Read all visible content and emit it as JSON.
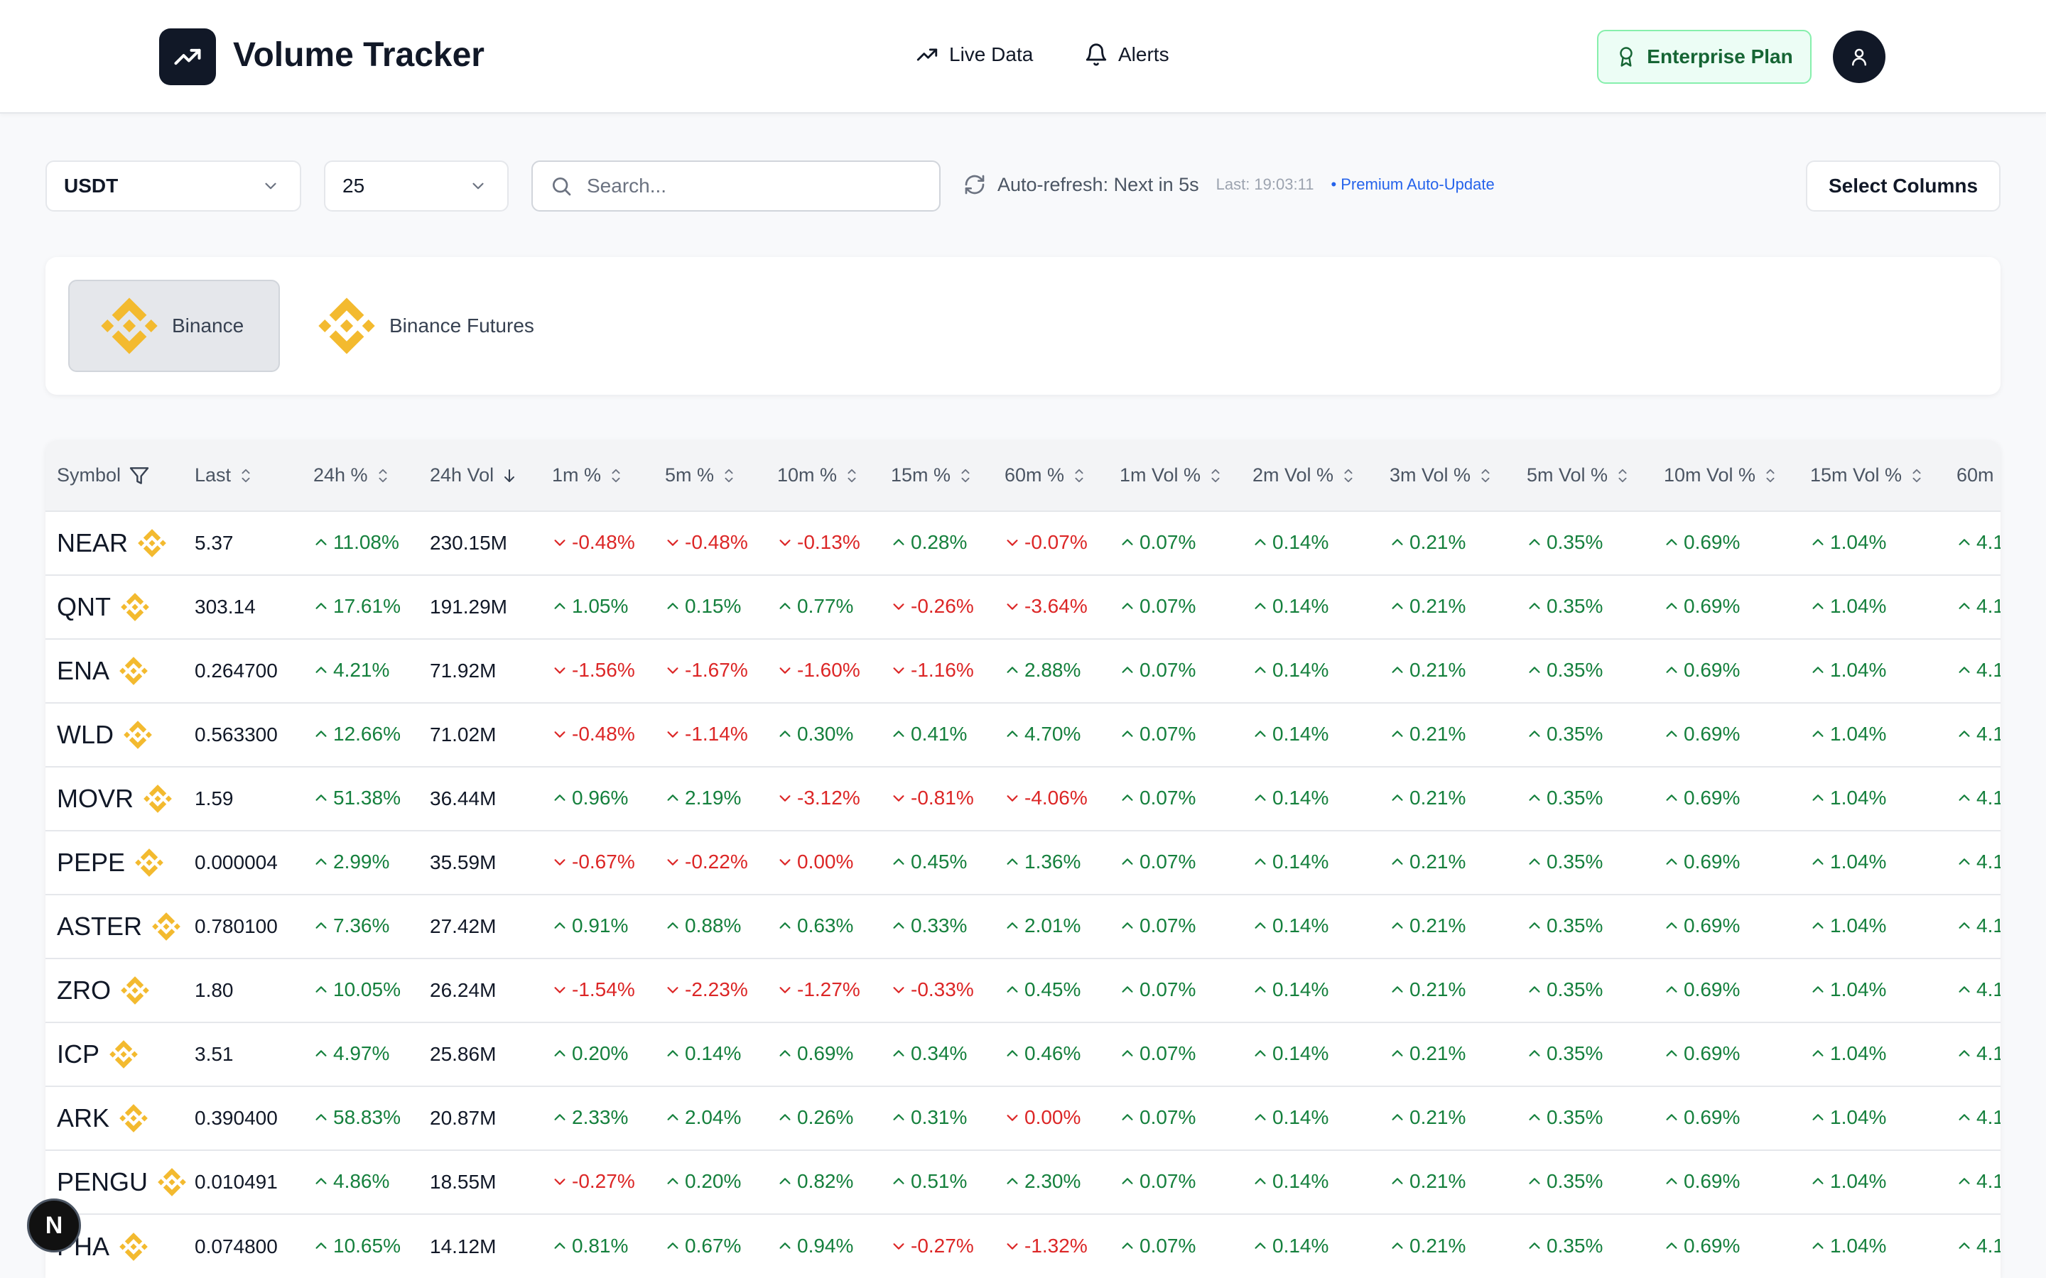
{
  "header": {
    "title": "Volume Tracker",
    "nav": [
      {
        "label": "Live Data",
        "icon": "trending-up-icon"
      },
      {
        "label": "Alerts",
        "icon": "bell-icon"
      }
    ],
    "plan_label": "Enterprise Plan",
    "plan_icon": "award-icon",
    "avatar_icon": "user-icon",
    "colors": {
      "brand": "#111827",
      "plan_bg": "#ecfdf5",
      "plan_text": "#166534"
    }
  },
  "controls": {
    "quote_select": "USDT",
    "limit_select": "25",
    "search_placeholder": "Search...",
    "refresh_text": "Auto-refresh: Next in 5s",
    "refresh_last": "Last: 19:03:11",
    "refresh_premium": "• Premium Auto-Update",
    "select_columns_label": "Select Columns"
  },
  "exchanges": [
    {
      "label": "Binance",
      "active": true,
      "icon": "binance-logo-icon"
    },
    {
      "label": "Binance Futures",
      "active": false,
      "icon": "binance-logo-icon"
    }
  ],
  "table": {
    "columns": [
      {
        "label": "Symbol",
        "icon": "filter-icon"
      },
      {
        "label": "Last",
        "icon": "sort-icon"
      },
      {
        "label": "24h %",
        "icon": "sort-icon"
      },
      {
        "label": "24h Vol",
        "icon": "arrow-down-icon"
      },
      {
        "label": "1m %",
        "icon": "sort-icon"
      },
      {
        "label": "5m %",
        "icon": "sort-icon"
      },
      {
        "label": "10m %",
        "icon": "sort-icon"
      },
      {
        "label": "15m %",
        "icon": "sort-icon"
      },
      {
        "label": "60m %",
        "icon": "sort-icon"
      },
      {
        "label": "1m Vol %",
        "icon": "sort-icon"
      },
      {
        "label": "2m Vol %",
        "icon": "sort-icon"
      },
      {
        "label": "3m Vol %",
        "icon": "sort-icon"
      },
      {
        "label": "5m Vol %",
        "icon": "sort-icon"
      },
      {
        "label": "10m Vol %",
        "icon": "sort-icon"
      },
      {
        "label": "15m Vol %",
        "icon": "sort-icon"
      },
      {
        "label": "60m",
        "icon": ""
      }
    ],
    "rows": [
      {
        "symbol": "NEAR",
        "last": "5.37",
        "ch24": "11.08%",
        "vol24": "230.15M",
        "m1": "-0.48%",
        "m5": "-0.48%",
        "m10": "-0.13%",
        "m15": "0.28%",
        "m60": "-0.07%",
        "v1": "0.07%",
        "v2": "0.14%",
        "v3": "0.21%",
        "v5": "0.35%",
        "v10": "0.69%",
        "v15": "1.04%",
        "v60": "4.1"
      },
      {
        "symbol": "QNT",
        "last": "303.14",
        "ch24": "17.61%",
        "vol24": "191.29M",
        "m1": "1.05%",
        "m5": "0.15%",
        "m10": "0.77%",
        "m15": "-0.26%",
        "m60": "-3.64%",
        "v1": "0.07%",
        "v2": "0.14%",
        "v3": "0.21%",
        "v5": "0.35%",
        "v10": "0.69%",
        "v15": "1.04%",
        "v60": "4.1"
      },
      {
        "symbol": "ENA",
        "last": "0.264700",
        "ch24": "4.21%",
        "vol24": "71.92M",
        "m1": "-1.56%",
        "m5": "-1.67%",
        "m10": "-1.60%",
        "m15": "-1.16%",
        "m60": "2.88%",
        "v1": "0.07%",
        "v2": "0.14%",
        "v3": "0.21%",
        "v5": "0.35%",
        "v10": "0.69%",
        "v15": "1.04%",
        "v60": "4.1"
      },
      {
        "symbol": "WLD",
        "last": "0.563300",
        "ch24": "12.66%",
        "vol24": "71.02M",
        "m1": "-0.48%",
        "m5": "-1.14%",
        "m10": "0.30%",
        "m15": "0.41%",
        "m60": "4.70%",
        "v1": "0.07%",
        "v2": "0.14%",
        "v3": "0.21%",
        "v5": "0.35%",
        "v10": "0.69%",
        "v15": "1.04%",
        "v60": "4.1"
      },
      {
        "symbol": "MOVR",
        "last": "1.59",
        "ch24": "51.38%",
        "vol24": "36.44M",
        "m1": "0.96%",
        "m5": "2.19%",
        "m10": "-3.12%",
        "m15": "-0.81%",
        "m60": "-4.06%",
        "v1": "0.07%",
        "v2": "0.14%",
        "v3": "0.21%",
        "v5": "0.35%",
        "v10": "0.69%",
        "v15": "1.04%",
        "v60": "4.1"
      },
      {
        "symbol": "PEPE",
        "last": "0.000004",
        "ch24": "2.99%",
        "vol24": "35.59M",
        "m1": "-0.67%",
        "m5": "-0.22%",
        "m10": "0.00%",
        "m10dir": "down",
        "m15": "0.45%",
        "m60": "1.36%",
        "v1": "0.07%",
        "v2": "0.14%",
        "v3": "0.21%",
        "v5": "0.35%",
        "v10": "0.69%",
        "v15": "1.04%",
        "v60": "4.1"
      },
      {
        "symbol": "ASTER",
        "last": "0.780100",
        "ch24": "7.36%",
        "vol24": "27.42M",
        "m1": "0.91%",
        "m5": "0.88%",
        "m10": "0.63%",
        "m15": "0.33%",
        "m60": "2.01%",
        "v1": "0.07%",
        "v2": "0.14%",
        "v3": "0.21%",
        "v5": "0.35%",
        "v10": "0.69%",
        "v15": "1.04%",
        "v60": "4.1"
      },
      {
        "symbol": "ZRO",
        "last": "1.80",
        "ch24": "10.05%",
        "vol24": "26.24M",
        "m1": "-1.54%",
        "m5": "-2.23%",
        "m10": "-1.27%",
        "m15": "-0.33%",
        "m60": "0.45%",
        "v1": "0.07%",
        "v2": "0.14%",
        "v3": "0.21%",
        "v5": "0.35%",
        "v10": "0.69%",
        "v15": "1.04%",
        "v60": "4.1"
      },
      {
        "symbol": "ICP",
        "last": "3.51",
        "ch24": "4.97%",
        "vol24": "25.86M",
        "m1": "0.20%",
        "m5": "0.14%",
        "m10": "0.69%",
        "m15": "0.34%",
        "m60": "0.46%",
        "v1": "0.07%",
        "v2": "0.14%",
        "v3": "0.21%",
        "v5": "0.35%",
        "v10": "0.69%",
        "v15": "1.04%",
        "v60": "4.1"
      },
      {
        "symbol": "ARK",
        "last": "0.390400",
        "ch24": "58.83%",
        "vol24": "20.87M",
        "m1": "2.33%",
        "m5": "2.04%",
        "m10": "0.26%",
        "m15": "0.31%",
        "m60": "0.00%",
        "m60dir": "down",
        "v1": "0.07%",
        "v2": "0.14%",
        "v3": "0.21%",
        "v5": "0.35%",
        "v10": "0.69%",
        "v15": "1.04%",
        "v60": "4.1"
      },
      {
        "symbol": "PENGU",
        "last": "0.010491",
        "ch24": "4.86%",
        "vol24": "18.55M",
        "m1": "-0.27%",
        "m5": "0.20%",
        "m10": "0.82%",
        "m15": "0.51%",
        "m60": "2.30%",
        "v1": "0.07%",
        "v2": "0.14%",
        "v3": "0.21%",
        "v5": "0.35%",
        "v10": "0.69%",
        "v15": "1.04%",
        "v60": "4.1"
      },
      {
        "symbol": "PHA",
        "last": "0.074800",
        "ch24": "10.65%",
        "vol24": "14.12M",
        "m1": "0.81%",
        "m5": "0.67%",
        "m10": "0.94%",
        "m15": "-0.27%",
        "m60": "-1.32%",
        "v1": "0.07%",
        "v2": "0.14%",
        "v3": "0.21%",
        "v5": "0.35%",
        "v10": "0.69%",
        "v15": "1.04%",
        "v60": "4.1"
      }
    ],
    "colors": {
      "positive": "#15803d",
      "negative": "#dc2626"
    }
  },
  "floating_badge": {
    "label": "N"
  }
}
